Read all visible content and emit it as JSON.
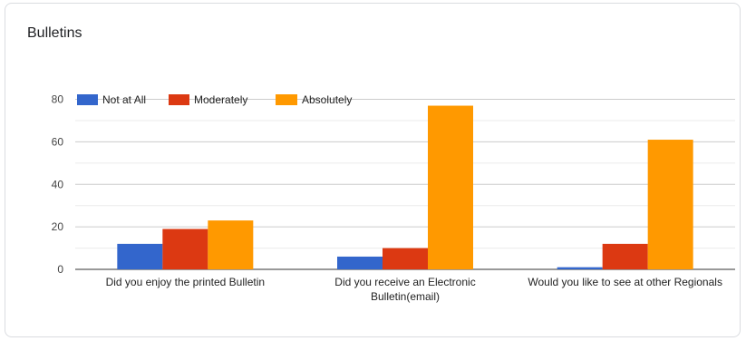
{
  "chart_data": {
    "type": "bar",
    "title": "Bulletins",
    "xlabel": "",
    "ylabel": "",
    "categories": [
      [
        "Did you enjoy the printed Bulletin"
      ],
      [
        "Did you receive an Electronic",
        "Bulletin(email)"
      ],
      [
        "Would you like to see at other Regionals"
      ]
    ],
    "series": [
      {
        "name": "Not at All",
        "color": "#3366cc",
        "values": [
          12,
          6,
          1
        ]
      },
      {
        "name": "Moderately",
        "color": "#dc3912",
        "values": [
          19,
          10,
          12
        ]
      },
      {
        "name": "Absolutely",
        "color": "#ff9900",
        "values": [
          23,
          77,
          61
        ]
      }
    ],
    "ylim": [
      0,
      85
    ],
    "yticks": [
      0,
      20,
      40,
      60,
      80
    ],
    "grid": true,
    "legend_position": "top-left"
  }
}
